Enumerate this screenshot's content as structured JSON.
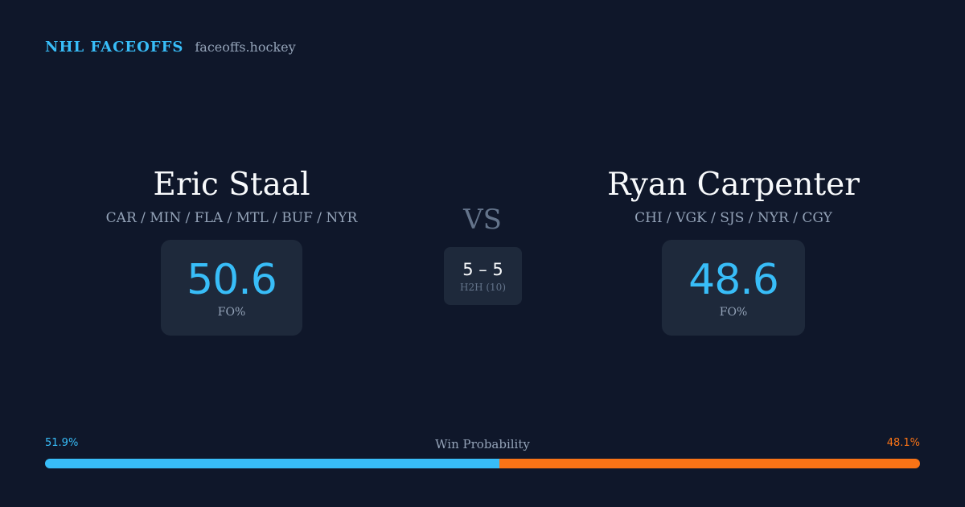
{
  "brand": {
    "name": "NHL FACEOFFS",
    "domain": "faceoffs.hockey"
  },
  "player_left": {
    "name": "Eric Staal",
    "teams": "CAR / MIN / FLA / MTL / BUF / NYR",
    "stat_value": "50.6",
    "stat_label": "FO%"
  },
  "player_right": {
    "name": "Ryan Carpenter",
    "teams": "CHI / VGK / SJS / NYR / CGY",
    "stat_value": "48.6",
    "stat_label": "FO%"
  },
  "versus": {
    "label": "VS",
    "h2h_score": "5 – 5",
    "h2h_label": "H2H (10)"
  },
  "win_probability": {
    "title": "Win Probability",
    "left_label": "51.9%",
    "right_label": "48.1%",
    "left_value": 51.9,
    "right_value": 48.1
  },
  "colors": {
    "background": "#0f172a",
    "card": "#1e293b",
    "accent_blue": "#38bdf8",
    "accent_orange": "#f97316",
    "muted": "#94a3b8"
  }
}
